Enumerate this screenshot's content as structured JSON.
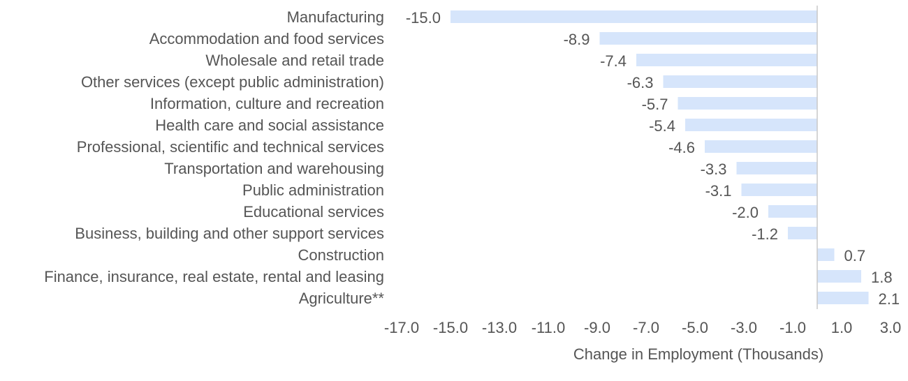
{
  "chart_data": {
    "type": "bar",
    "orientation": "horizontal",
    "categories": [
      "Manufacturing",
      "Accommodation and food services",
      "Wholesale and retail trade",
      "Other services (except public administration)",
      "Information, culture and recreation",
      "Health care and social assistance",
      "Professional, scientific and technical services",
      "Transportation and warehousing",
      "Public administration",
      "Educational services",
      "Business, building and other support services",
      "Construction",
      "Finance, insurance, real estate, rental and leasing",
      "Agriculture**"
    ],
    "values": [
      -15.0,
      -8.9,
      -7.4,
      -6.3,
      -5.7,
      -5.4,
      -4.6,
      -3.3,
      -3.1,
      -2.0,
      -1.2,
      0.7,
      1.8,
      2.1
    ],
    "value_labels": [
      "-15.0",
      "-8.9",
      "-7.4",
      "-6.3",
      "-5.7",
      "-5.4",
      "-4.6",
      "-3.3",
      "-3.1",
      "-2.0",
      "-1.2",
      "0.7",
      "1.8",
      "2.1"
    ],
    "xlabel": "Change in Employment (Thousands)",
    "ylabel": "",
    "title": "",
    "xlim": [
      -17.0,
      3.0
    ],
    "x_ticks": [
      -17.0,
      -15.0,
      -13.0,
      -11.0,
      -9.0,
      -7.0,
      -5.0,
      -3.0,
      -1.0,
      1.0,
      3.0
    ],
    "x_tick_labels": [
      "-17.0",
      "-15.0",
      "-13.0",
      "-11.0",
      "-9.0",
      "-7.0",
      "-5.0",
      "-3.0",
      "-1.0",
      "1.0",
      "3.0"
    ],
    "bar_color": "#d6e5fb",
    "grid": false,
    "legend": "none"
  }
}
